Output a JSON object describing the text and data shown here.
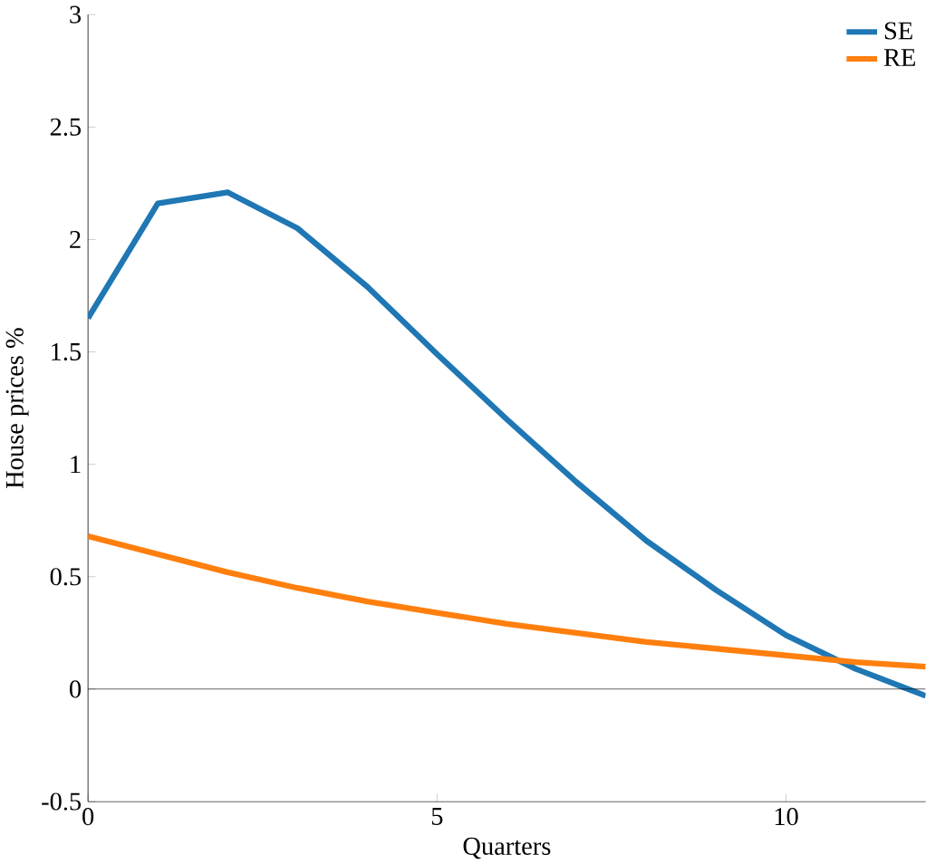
{
  "chart_data": {
    "type": "line",
    "xlabel": "Quarters",
    "ylabel": "House prices %",
    "x": [
      0,
      1,
      2,
      3,
      4,
      5,
      6,
      7,
      8,
      9,
      10,
      11,
      12
    ],
    "series": [
      {
        "name": "SE",
        "color": "#1f77b4",
        "values": [
          1.65,
          2.16,
          2.21,
          2.05,
          1.79,
          1.49,
          1.2,
          0.92,
          0.66,
          0.44,
          0.24,
          0.09,
          -0.03
        ]
      },
      {
        "name": "RE",
        "color": "#ff7f0e",
        "values": [
          0.68,
          0.6,
          0.52,
          0.45,
          0.39,
          0.34,
          0.29,
          0.25,
          0.21,
          0.18,
          0.15,
          0.12,
          0.1
        ]
      }
    ],
    "xlim": [
      0,
      12
    ],
    "ylim": [
      -0.5,
      3
    ],
    "xticks": [
      0,
      5,
      10
    ],
    "yticks": [
      -0.5,
      0,
      0.5,
      1,
      1.5,
      2,
      2.5,
      3
    ],
    "ref_lines": [
      {
        "axis": "y",
        "value": 0,
        "color": "#000000"
      }
    ],
    "legend": "top right",
    "grid": false,
    "marker": "none",
    "line_style": "solid"
  }
}
